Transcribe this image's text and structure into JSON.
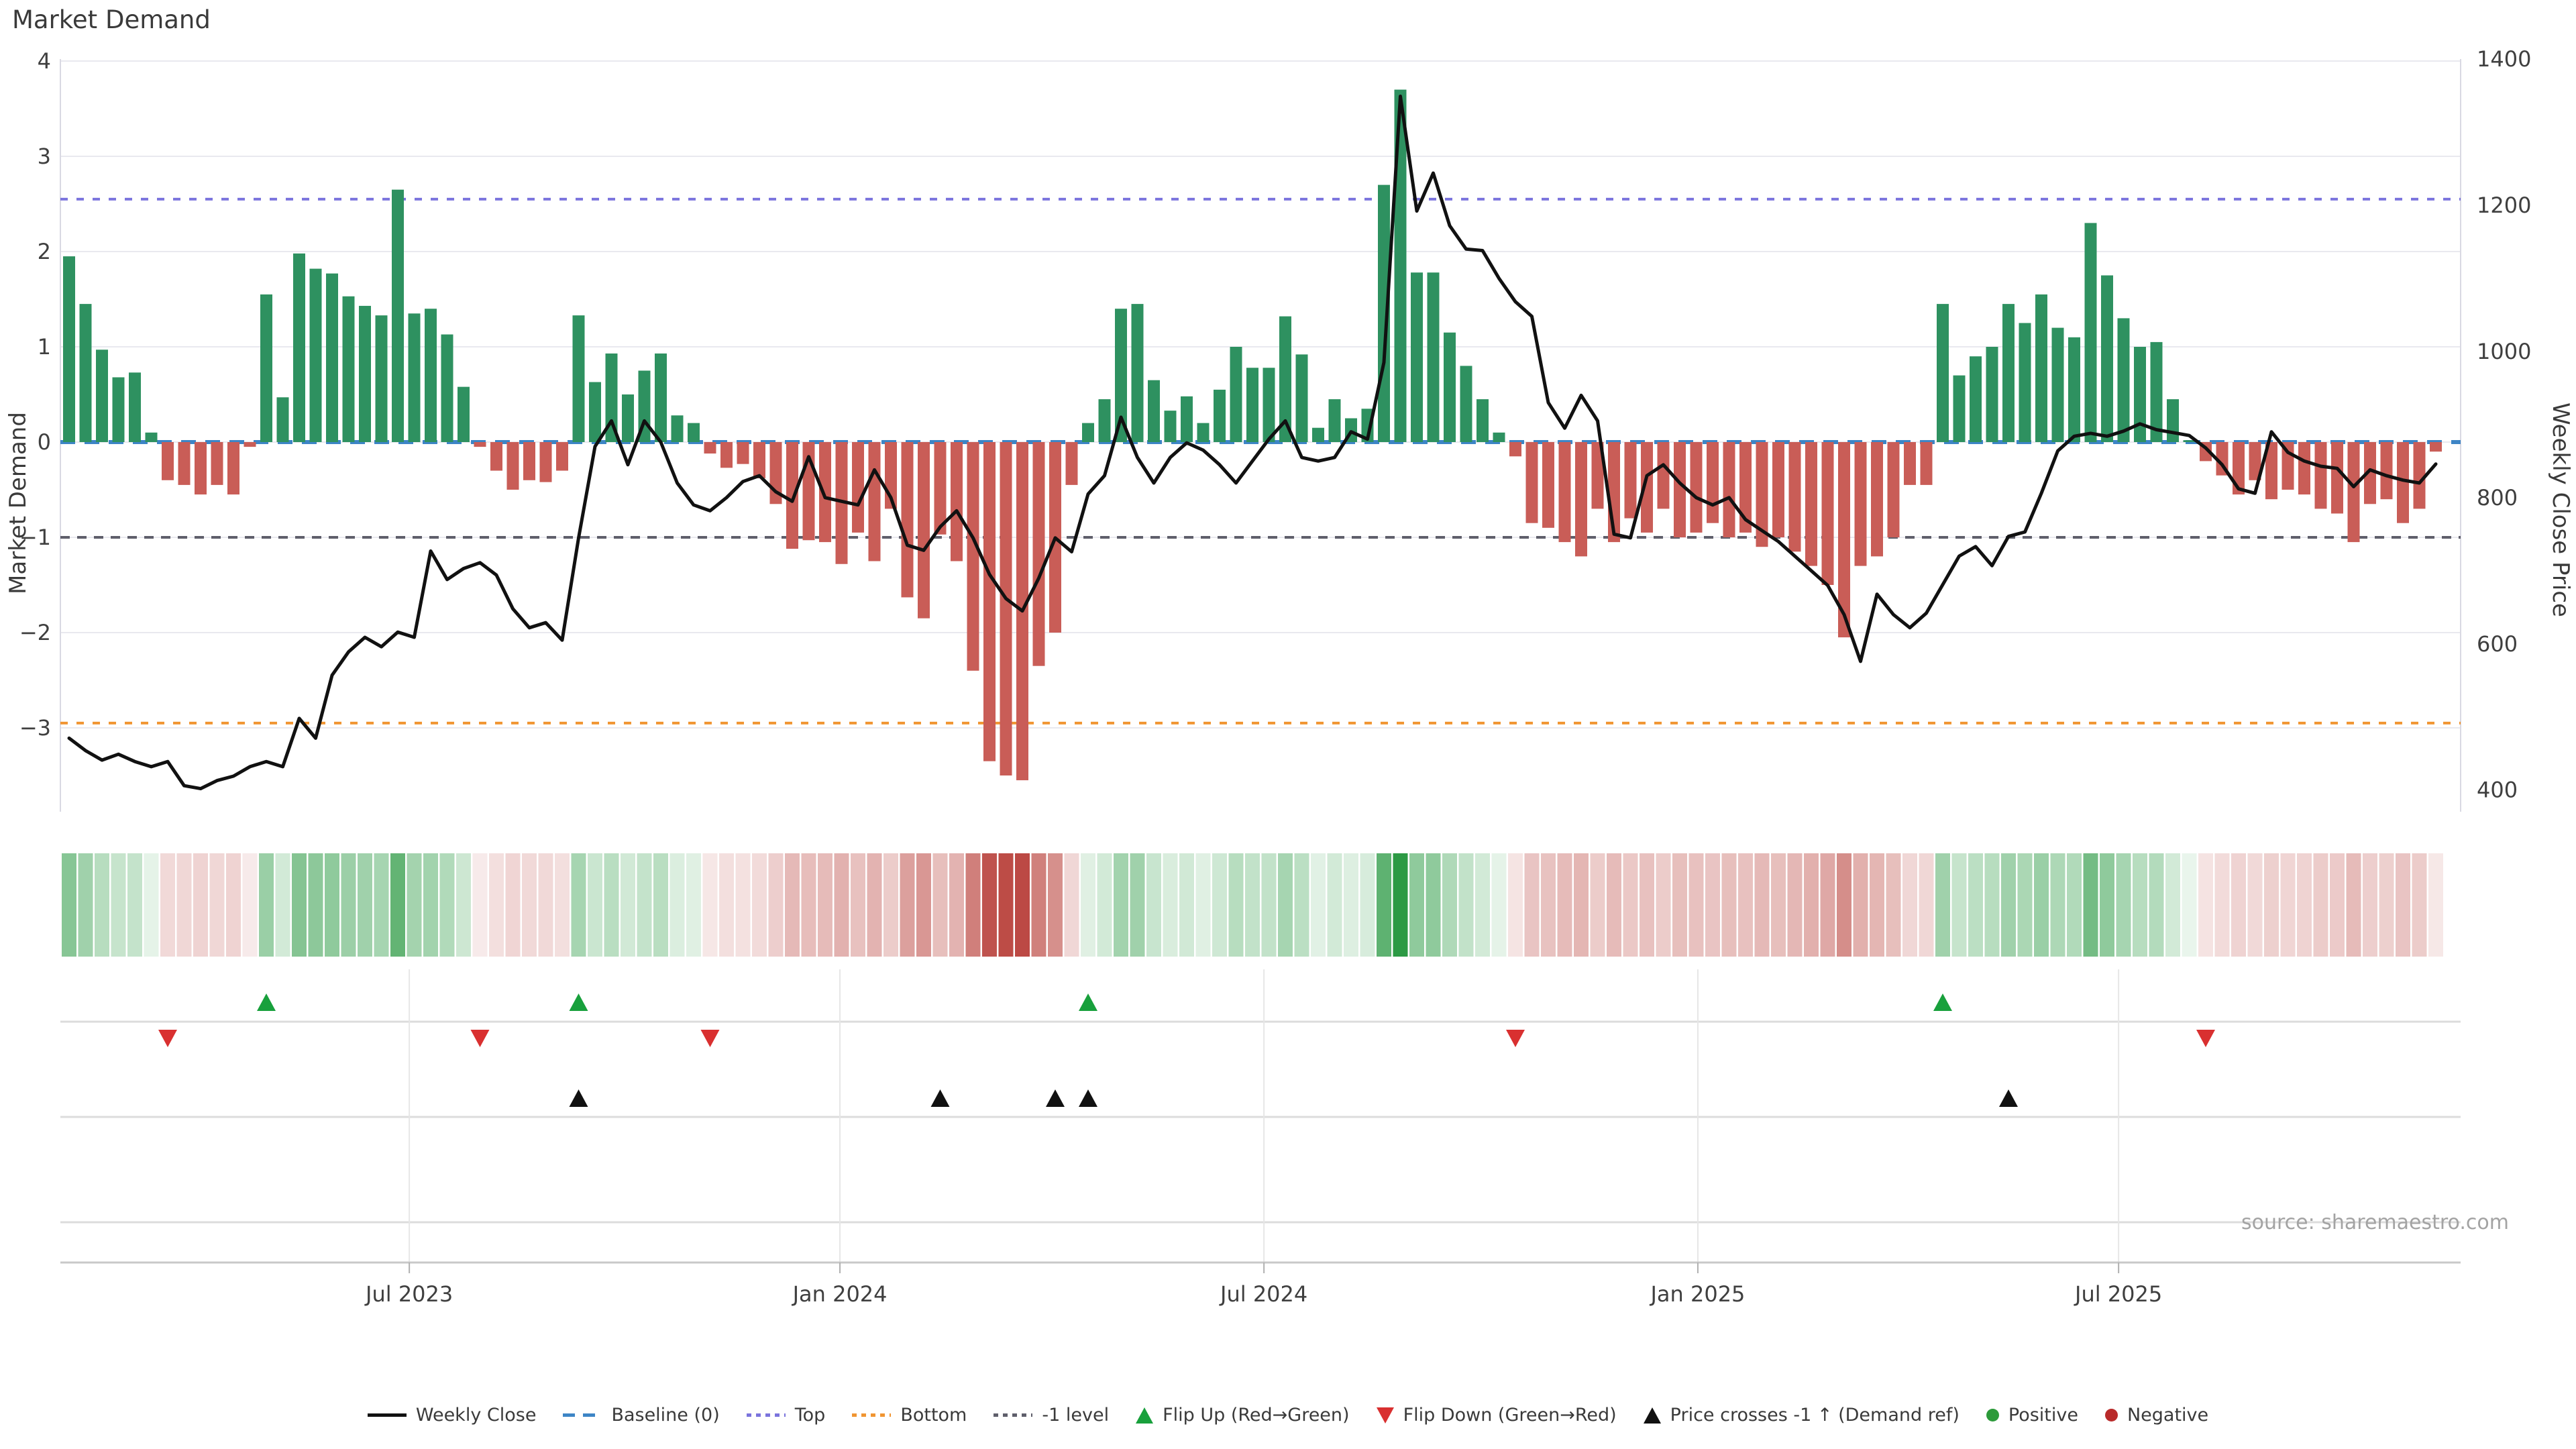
{
  "title": "Market Demand",
  "source": "source: sharemaestro.com",
  "axes": {
    "left_label": "Market Demand",
    "right_label": "Weekly Close Price",
    "left_ticks": [
      4,
      3,
      2,
      1,
      0,
      -1,
      -2,
      -3
    ],
    "right_ticks": [
      1400,
      1200,
      1000,
      800,
      600,
      400
    ],
    "x_ticks": [
      {
        "label": "Jul 2023",
        "week": 20.7
      },
      {
        "label": "Jan 2024",
        "week": 46.9
      },
      {
        "label": "Jul 2024",
        "week": 72.7
      },
      {
        "label": "Jan 2025",
        "week": 99.1
      },
      {
        "label": "Jul 2025",
        "week": 124.7
      }
    ]
  },
  "colors": {
    "bar_positive": "#2e9160",
    "bar_negative": "#c95d57",
    "heat_positive": "44,154,68",
    "heat_negative": "185,66,60",
    "price_line": "#111111",
    "baseline": "#3d85c6",
    "top_line": "#7b74dd",
    "bottom_line": "#f09532",
    "minus1_line": "#5f5f6b",
    "flip_up": "#18a03c",
    "flip_down": "#d93030",
    "price_cross": "#111111",
    "grid": "#e9e9ef",
    "band_grid": "#dcdcdc",
    "axis_line": "#c9c9c9",
    "tick_text": "#3f3f3f"
  },
  "ref_lines": {
    "baseline": {
      "label": "Baseline (0)",
      "value": 0
    },
    "top": {
      "label": "Top",
      "value": 2.55
    },
    "bottom": {
      "label": "Bottom",
      "value": -2.95
    },
    "minus1": {
      "label": "-1 level",
      "value": -1
    }
  },
  "markers": {
    "flip_up_weeks": [
      12,
      31,
      62,
      114
    ],
    "flip_down_weeks": [
      6,
      25,
      39,
      88,
      130
    ],
    "price_cross_weeks": [
      31,
      53,
      60,
      62,
      118
    ]
  },
  "legend": [
    {
      "label": "Weekly Close",
      "symbol": "line"
    },
    {
      "label": "Baseline (0)",
      "symbol": "dash"
    },
    {
      "label": "Top",
      "symbol": "dot-top"
    },
    {
      "label": "Bottom",
      "symbol": "dot-bottom"
    },
    {
      "label": "-1 level",
      "symbol": "dot-minus1"
    },
    {
      "label": "Flip Up (Red→Green)",
      "symbol": "tri-up-green"
    },
    {
      "label": "Flip Down (Green→Red)",
      "symbol": "tri-down-red"
    },
    {
      "label": "Price crosses -1 ↑ (Demand ref)",
      "symbol": "tri-up-black"
    },
    {
      "label": "Positive",
      "symbol": "dot-green"
    },
    {
      "label": "Negative",
      "symbol": "dot-red"
    }
  ],
  "chart_data": {
    "type": "combo",
    "x_unit": "week_index",
    "n_weeks": 145,
    "ylim_left": [
      -3.9,
      4
    ],
    "ylim_right": [
      370,
      1400
    ],
    "grid": "horizontal-only",
    "legend_position": "bottom-center",
    "series": [
      {
        "name": "Market Demand",
        "type": "bar",
        "axis": "left",
        "values": [
          1.95,
          1.45,
          0.97,
          0.68,
          0.73,
          0.1,
          -0.4,
          -0.45,
          -0.55,
          -0.45,
          -0.55,
          -0.05,
          1.55,
          0.47,
          1.98,
          1.82,
          1.77,
          1.53,
          1.43,
          1.33,
          2.65,
          1.35,
          1.4,
          1.13,
          0.58,
          -0.05,
          -0.3,
          -0.5,
          -0.4,
          -0.42,
          -0.3,
          1.33,
          0.63,
          0.93,
          0.5,
          0.75,
          0.93,
          0.28,
          0.2,
          -0.12,
          -0.27,
          -0.23,
          -0.38,
          -0.65,
          -1.12,
          -1.03,
          -1.05,
          -1.28,
          -0.95,
          -1.25,
          -0.7,
          -1.63,
          -1.85,
          -0.97,
          -1.25,
          -2.4,
          -3.35,
          -3.5,
          -3.55,
          -2.35,
          -2.0,
          -0.45,
          0.2,
          0.45,
          1.4,
          1.45,
          0.65,
          0.33,
          0.48,
          0.2,
          0.55,
          1.0,
          0.78,
          0.78,
          1.32,
          0.92,
          0.15,
          0.45,
          0.25,
          0.35,
          2.7,
          3.7,
          1.78,
          1.78,
          1.15,
          0.8,
          0.45,
          0.1,
          -0.15,
          -0.85,
          -0.9,
          -1.05,
          -1.2,
          -0.7,
          -1.05,
          -0.8,
          -0.95,
          -0.7,
          -1.0,
          -0.95,
          -0.85,
          -1.0,
          -0.95,
          -1.1,
          -1.0,
          -1.15,
          -1.3,
          -1.5,
          -2.05,
          -1.3,
          -1.2,
          -1.0,
          -0.45,
          -0.45,
          1.45,
          0.7,
          0.9,
          1.0,
          1.45,
          1.25,
          1.55,
          1.2,
          1.1,
          2.3,
          1.75,
          1.3,
          1.0,
          1.05,
          0.45,
          0.02,
          -0.2,
          -0.35,
          -0.55,
          -0.4,
          -0.6,
          -0.5,
          -0.55,
          -0.7,
          -0.75,
          -1.05,
          -0.65,
          -0.6,
          -0.85,
          -0.7,
          -0.1
        ]
      },
      {
        "name": "Weekly Close",
        "type": "line",
        "axis": "right",
        "values": [
          471,
          454,
          441,
          449,
          439,
          432,
          439,
          406,
          402,
          413,
          419,
          432,
          439,
          432,
          498,
          471,
          557,
          589,
          609,
          596,
          616,
          609,
          727,
          688,
          703,
          711,
          694,
          648,
          622,
          629,
          605,
          745,
          870,
          905,
          845,
          905,
          876,
          820,
          790,
          782,
          800,
          822,
          830,
          808,
          795,
          856,
          800,
          795,
          790,
          838,
          800,
          735,
          728,
          760,
          782,
          745,
          695,
          662,
          645,
          690,
          745,
          726,
          805,
          830,
          910,
          855,
          820,
          855,
          875,
          865,
          845,
          820,
          850,
          880,
          905,
          855,
          850,
          855,
          890,
          880,
          985,
          1349,
          1192,
          1244,
          1172,
          1140,
          1138,
          1100,
          1068,
          1048,
          930,
          895,
          940,
          905,
          750,
          745,
          830,
          845,
          820,
          800,
          790,
          800,
          770,
          755,
          740,
          720,
          700,
          680,
          640,
          576,
          668,
          640,
          622,
          642,
          681,
          720,
          733,
          707,
          747,
          753,
          806,
          864,
          884,
          888,
          884,
          891,
          901,
          893,
          889,
          885,
          868,
          845,
          812,
          806,
          890,
          862,
          850,
          843,
          840,
          815,
          838,
          830,
          824,
          820,
          846
        ]
      }
    ]
  }
}
